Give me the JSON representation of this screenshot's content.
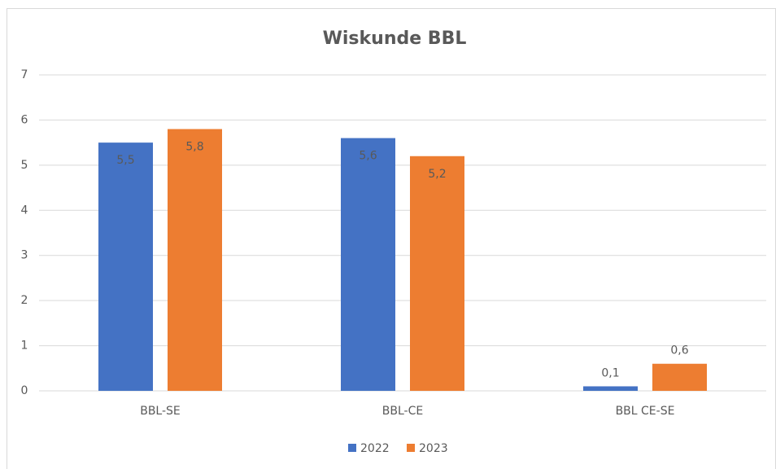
{
  "chart_data": {
    "type": "bar",
    "title": "Wiskunde BBL",
    "categories": [
      "BBL-SE",
      "BBL-CE",
      "BBL CE-SE"
    ],
    "series": [
      {
        "name": "2022",
        "color": "#4472c4",
        "values": [
          5.5,
          5.6,
          0.1
        ],
        "value_labels": [
          "5,5",
          "5,6",
          "0,1"
        ]
      },
      {
        "name": "2023",
        "color": "#ed7d31",
        "values": [
          5.8,
          5.2,
          0.6
        ],
        "value_labels": [
          "5,8",
          "5,2",
          "0,6"
        ]
      }
    ],
    "ylim": [
      0,
      7
    ],
    "yticks": [
      0,
      1,
      2,
      3,
      4,
      5,
      6,
      7
    ],
    "grid": true,
    "legend": "bottom"
  }
}
